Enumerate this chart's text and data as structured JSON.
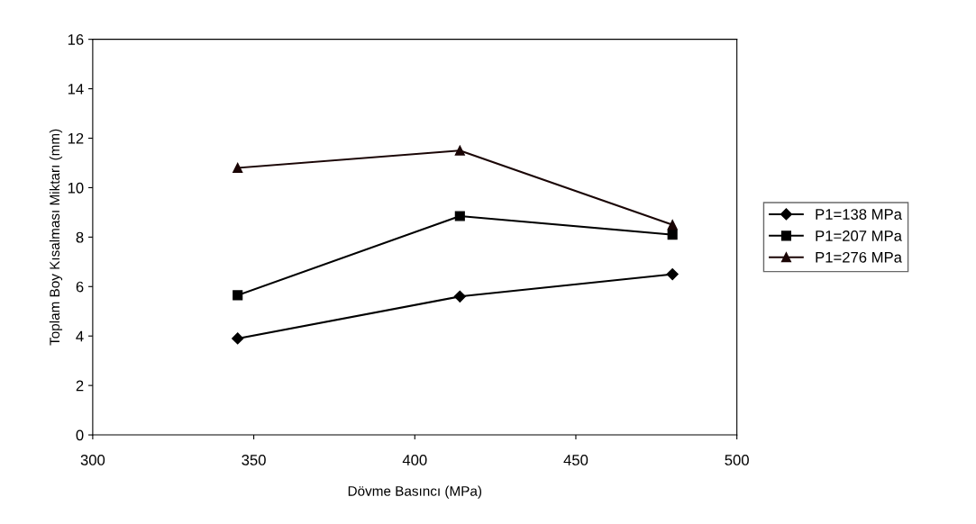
{
  "chart_data": {
    "type": "line",
    "xlabel": "Dövme Basıncı (MPa)",
    "ylabel": "Toplam Boy Kısalması Miktarı (mm)",
    "x": [
      345,
      414,
      480
    ],
    "series": [
      {
        "name": "P1=138 MPa",
        "color": "#000000",
        "marker": "diamond",
        "values": [
          3.9,
          5.6,
          6.5
        ]
      },
      {
        "name": "P1=207 MPa",
        "color": "#000000",
        "marker": "square",
        "values": [
          5.65,
          8.85,
          8.1
        ]
      },
      {
        "name": "P1=276 MPa",
        "color": "#1a0505",
        "marker": "triangle",
        "values": [
          10.8,
          11.5,
          8.5
        ]
      }
    ],
    "xlim": [
      300,
      500
    ],
    "xticks": [
      300,
      350,
      400,
      450,
      500
    ],
    "ylim": [
      0,
      16
    ],
    "yticks": [
      0,
      2,
      4,
      6,
      8,
      10,
      12,
      14,
      16
    ],
    "grid": false,
    "legend": "right",
    "line_style": "solid"
  }
}
